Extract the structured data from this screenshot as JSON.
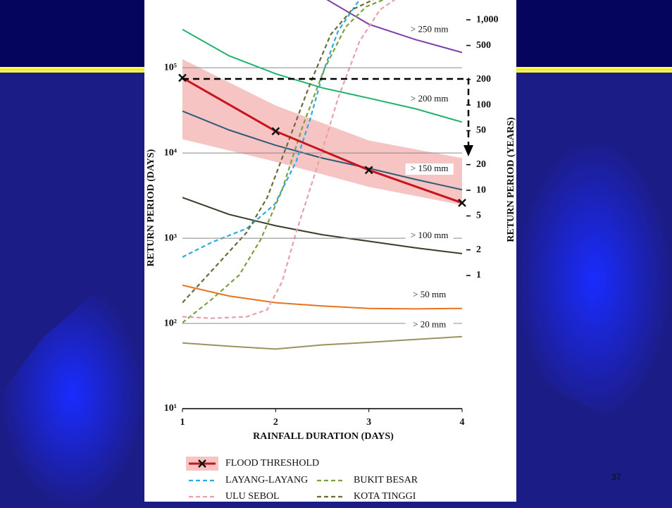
{
  "slide_number": "37",
  "chart_data": {
    "type": "line",
    "y_log": true,
    "xlabel": "RAINFALL DURATION (DAYS)",
    "ylabel": "RETURN PERIOD (DAYS)",
    "y2label": "RETURN PERIOD (YEARS)",
    "xlim": [
      1,
      4
    ],
    "xticks": [
      1,
      2,
      3,
      4
    ],
    "ylim": [
      10,
      600000
    ],
    "yticks": [
      {
        "value": 10,
        "label": "10¹"
      },
      {
        "value": 100,
        "label": "10²"
      },
      {
        "value": 1000,
        "label": "10³"
      },
      {
        "value": 10000,
        "label": "10⁴"
      },
      {
        "value": 100000,
        "label": "10⁵"
      }
    ],
    "y2lim": [
      0.0274,
      1644
    ],
    "y2ticks": [
      1,
      2,
      5,
      10,
      20,
      50,
      100,
      200,
      500,
      {
        "value": 1000,
        "label": "1,000"
      }
    ],
    "grid": true,
    "rainfall_series": [
      {
        "name": "> 250 mm",
        "color": "#7b3fa8",
        "x": [
          2.55,
          3,
          3.5,
          4
        ],
        "values": [
          630000,
          324000,
          214000,
          151000
        ]
      },
      {
        "name": "> 200 mm",
        "color": "#1fb36a",
        "x": [
          1,
          1.5,
          2,
          2.5,
          3,
          3.5,
          4
        ],
        "values": [
          282000,
          138000,
          85000,
          58000,
          44000,
          33000,
          23000
        ]
      },
      {
        "name": "> 150 mm",
        "color": "#2f5b78",
        "x": [
          1,
          1.5,
          2,
          2.5,
          3,
          3.5,
          4
        ],
        "values": [
          31000,
          18600,
          12300,
          8700,
          6600,
          4900,
          3700
        ]
      },
      {
        "name": "> 100 mm",
        "color": "#3d3a2a",
        "x": [
          1,
          1.5,
          2,
          2.5,
          3,
          3.5,
          4
        ],
        "values": [
          3000,
          1900,
          1400,
          1100,
          920,
          770,
          660
        ]
      },
      {
        "name": "> 50 mm",
        "color": "#e8731f",
        "x": [
          1,
          1.5,
          2,
          2.5,
          3,
          3.5,
          4
        ],
        "values": [
          280,
          210,
          175,
          160,
          150,
          148,
          150
        ]
      },
      {
        "name": "> 20 mm",
        "color": "#9a9460",
        "x": [
          1,
          1.5,
          2,
          2.5,
          3,
          3.5,
          4
        ],
        "values": [
          59,
          54,
          50,
          56,
          60,
          65,
          70
        ]
      }
    ],
    "flood": {
      "name": "FLOOD THRESHOLD",
      "color": "#c8141e",
      "band_color": "#f7c4c4",
      "x": [
        1,
        2,
        3,
        4
      ],
      "values": [
        76000,
        18000,
        6300,
        2600
      ],
      "band_upper": [
        126000,
        36000,
        14000,
        8700
      ],
      "band_lower": [
        14500,
        7900,
        4000,
        2450
      ]
    },
    "series": [
      {
        "name": "LAYANG-LAYANG",
        "color": "#29abe2",
        "x": [
          1,
          1.31,
          1.69,
          1.99,
          2.22,
          2.37,
          2.52,
          2.67,
          2.9
        ],
        "values": [
          600,
          890,
          1300,
          2500,
          7900,
          25000,
          95000,
          270000,
          630000
        ]
      },
      {
        "name": "BUKIT BESAR",
        "color": "#7aa23c",
        "x": [
          1,
          1.31,
          1.61,
          1.84,
          2.07,
          2.29,
          2.52,
          2.75,
          2.97,
          3.16
        ],
        "values": [
          102,
          190,
          370,
          970,
          3700,
          20600,
          95000,
          300000,
          520000,
          630000
        ]
      },
      {
        "name": "ULU SEBOL",
        "color": "#e8a0a8",
        "x": [
          1,
          1.31,
          1.69,
          1.91,
          2.07,
          2.22,
          2.44,
          2.67,
          2.9,
          3.12,
          3.28
        ],
        "values": [
          120,
          115,
          120,
          145,
          310,
          1170,
          6600,
          44000,
          204000,
          480000,
          630000
        ]
      },
      {
        "name": "KOTA TINGGI",
        "color": "#6b6a3a",
        "x": [
          1,
          1.31,
          1.69,
          1.91,
          2.14,
          2.37,
          2.59,
          2.82,
          3.05
        ],
        "values": [
          175,
          410,
          1170,
          3000,
          14000,
          65000,
          245000,
          480000,
          630000
        ]
      }
    ]
  }
}
